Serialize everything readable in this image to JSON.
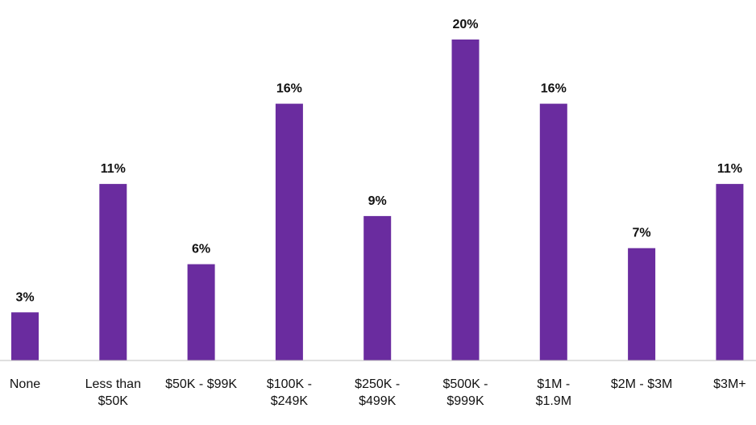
{
  "chart_data": {
    "type": "bar",
    "title": "",
    "xlabel": "",
    "ylabel": "",
    "ylim": [
      0,
      21
    ],
    "grid": false,
    "legend": "none",
    "bar_color": "#6A2C9F",
    "axis_color": "#BFBFBF",
    "categories": [
      [
        "None"
      ],
      [
        "Less than",
        "$50K"
      ],
      [
        "$50K - $99K"
      ],
      [
        "$100K -",
        "$249K"
      ],
      [
        "$250K -",
        "$499K"
      ],
      [
        "$500K -",
        "$999K"
      ],
      [
        "$1M -",
        "$1.9M"
      ],
      [
        "$2M - $3M"
      ],
      [
        "$3M+"
      ]
    ],
    "values": [
      3,
      11,
      6,
      16,
      9,
      20,
      16,
      7,
      11
    ],
    "data_labels": [
      "3%",
      "11%",
      "6%",
      "16%",
      "9%",
      "20%",
      "16%",
      "7%",
      "11%"
    ]
  }
}
